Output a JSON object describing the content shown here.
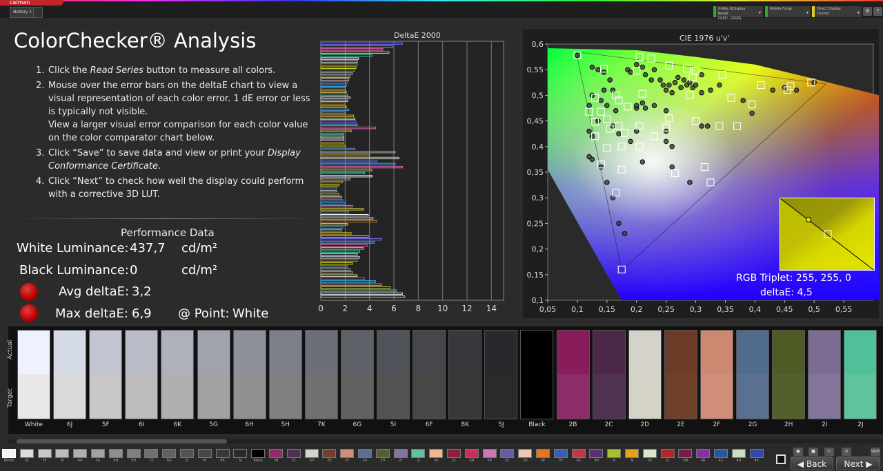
{
  "app": {
    "logo": "calman",
    "tab": "History 1"
  },
  "devices": [
    {
      "line1": "X-Rite i1Display Retail",
      "line2": "OLED - (RGB)",
      "color": "#2ea82e"
    },
    {
      "line1": "Mobile Forge",
      "line2": "",
      "color": "#2ea82e"
    },
    {
      "line1": "Direct Display Control",
      "line2": "",
      "color": "#e0d020"
    }
  ],
  "page_title": "ColorChecker® Analysis",
  "steps": {
    "s1_num": "1.",
    "s1_a": "Click the ",
    "s1_b": "Read Series",
    "s1_c": " button to measure all colors.",
    "s2_num": "2.",
    "s2_a": "Mouse over the error bars on the deltaE chart to view a visual representation of each color error. 1 dE error or less is typically not visible.",
    "s2_b": "View a larger visual error comparison for each color value on the color comparator chart below.",
    "s3_num": "3.",
    "s3_a": "Click “Save” to save data and view or print your ",
    "s3_b": "Display Conformance Certificate",
    "s3_c": ".",
    "s4_num": "4.",
    "s4_a": "Click “Next” to check how well the display could perform with a corrective 3D LUT."
  },
  "performance": {
    "title": "Performance Data",
    "white_label": "White Luminance:",
    "white_value": "437,7",
    "white_unit": "cd/m²",
    "black_label": "Black Luminance:",
    "black_value": "0",
    "black_unit": "cd/m²",
    "avg_label": "Avg deltaE:",
    "avg_value": "3,2",
    "max_label": "Max deltaE:",
    "max_value": "6,9",
    "point_label": "@ Point:",
    "point_value": "White"
  },
  "chart_data": [
    {
      "type": "bar",
      "title": "DeltaE 2000",
      "orientation": "horizontal",
      "xlim": [
        0,
        15
      ],
      "xticks": [
        0,
        2,
        4,
        6,
        8,
        10,
        12,
        14
      ],
      "grid": true,
      "values": [
        6.7,
        5.9,
        5.1,
        5.6,
        4.2,
        3.1,
        3.0,
        3.0,
        2.9,
        2.8,
        2.6,
        2.4,
        2.3,
        2.2,
        2.1,
        2.0,
        2.1,
        2.2,
        2.4,
        2.2,
        2.0,
        2.1,
        2.3,
        2.0,
        2.7,
        2.8,
        2.9,
        3.0,
        4.5,
        2.5,
        1.9,
        1.9,
        1.9,
        1.9,
        2.0,
        2.8,
        6.1,
        4.0,
        6.4,
        4.6,
        6.1,
        6.7,
        4.2,
        3.6,
        4.2,
        2.4,
        1.8,
        1.5,
        1.3,
        1.3,
        1.5,
        1.7,
        1.8,
        2.0,
        2.6,
        3.5,
        2.3,
        3.9,
        4.3,
        4.6,
        2.2,
        1.8,
        1.7,
        2.5,
        3.9,
        5.0,
        4.4,
        3.8,
        3.5,
        3.2,
        3.0,
        3.2,
        3.0,
        2.6,
        2.2,
        2.4,
        2.6,
        3.0,
        3.6,
        4.5,
        5.0,
        5.7,
        6.2,
        6.7,
        6.9
      ],
      "bar_colors": [
        "#7a6cff",
        "#37c8ff",
        "#ff6ecf",
        "#e6d24a",
        "#38d6a8",
        "#fff",
        "#d0d0d0",
        "#c09040",
        "#e6e600",
        "#4a9fe0",
        "#bbbbbb",
        "#d6b830",
        "#e6e0d0"
      ]
    },
    {
      "type": "scatter",
      "title": "CIE 1976 u'v'",
      "xlim": [
        0.05,
        0.6
      ],
      "ylim": [
        0.1,
        0.6
      ],
      "xticks": [
        "0,05",
        "0,1",
        "0,15",
        "0,2",
        "0,25",
        "0,3",
        "0,35",
        "0,4",
        "0,45",
        "0,5",
        "0,55"
      ],
      "yticks": [
        "0,1",
        "0,15",
        "0,2",
        "0,25",
        "0,3",
        "0,35",
        "0,4",
        "0,45",
        "0,5",
        "0,55",
        "0,6"
      ],
      "targets": [
        [
          0.1,
          0.578
        ],
        [
          0.145,
          0.552
        ],
        [
          0.205,
          0.575
        ],
        [
          0.2,
          0.548
        ],
        [
          0.225,
          0.572
        ],
        [
          0.255,
          0.558
        ],
        [
          0.285,
          0.552
        ],
        [
          0.3,
          0.548
        ],
        [
          0.345,
          0.54
        ],
        [
          0.295,
          0.535
        ],
        [
          0.41,
          0.52
        ],
        [
          0.46,
          0.518
        ],
        [
          0.495,
          0.525
        ],
        [
          0.455,
          0.51
        ],
        [
          0.36,
          0.495
        ],
        [
          0.395,
          0.482
        ],
        [
          0.29,
          0.5
        ],
        [
          0.21,
          0.503
        ],
        [
          0.165,
          0.5
        ],
        [
          0.13,
          0.495
        ],
        [
          0.17,
          0.49
        ],
        [
          0.12,
          0.468
        ],
        [
          0.14,
          0.468
        ],
        [
          0.185,
          0.478
        ],
        [
          0.13,
          0.448
        ],
        [
          0.155,
          0.435
        ],
        [
          0.15,
          0.453
        ],
        [
          0.17,
          0.44
        ],
        [
          0.205,
          0.44
        ],
        [
          0.255,
          0.455
        ],
        [
          0.25,
          0.437
        ],
        [
          0.3,
          0.45
        ],
        [
          0.34,
          0.44
        ],
        [
          0.37,
          0.44
        ],
        [
          0.18,
          0.426
        ],
        [
          0.13,
          0.42
        ],
        [
          0.15,
          0.397
        ],
        [
          0.175,
          0.4
        ],
        [
          0.205,
          0.4
        ],
        [
          0.23,
          0.42
        ],
        [
          0.14,
          0.365
        ],
        [
          0.175,
          0.355
        ],
        [
          0.265,
          0.348
        ],
        [
          0.315,
          0.36
        ],
        [
          0.325,
          0.33
        ],
        [
          0.165,
          0.31
        ],
        [
          0.175,
          0.16
        ]
      ],
      "measured": [
        [
          0.1,
          0.578
        ],
        [
          0.12,
          0.48
        ],
        [
          0.125,
          0.555
        ],
        [
          0.135,
          0.55
        ],
        [
          0.145,
          0.545
        ],
        [
          0.125,
          0.5
        ],
        [
          0.14,
          0.49
        ],
        [
          0.155,
          0.53
        ],
        [
          0.16,
          0.51
        ],
        [
          0.185,
          0.55
        ],
        [
          0.19,
          0.545
        ],
        [
          0.2,
          0.56
        ],
        [
          0.21,
          0.555
        ],
        [
          0.215,
          0.54
        ],
        [
          0.225,
          0.53
        ],
        [
          0.23,
          0.55
        ],
        [
          0.24,
          0.53
        ],
        [
          0.245,
          0.52
        ],
        [
          0.25,
          0.51
        ],
        [
          0.255,
          0.52
        ],
        [
          0.26,
          0.505
        ],
        [
          0.265,
          0.525
        ],
        [
          0.27,
          0.535
        ],
        [
          0.275,
          0.515
        ],
        [
          0.28,
          0.53
        ],
        [
          0.285,
          0.52
        ],
        [
          0.29,
          0.525
        ],
        [
          0.295,
          0.515
        ],
        [
          0.3,
          0.52
        ],
        [
          0.31,
          0.54
        ],
        [
          0.31,
          0.505
        ],
        [
          0.325,
          0.51
        ],
        [
          0.34,
          0.52
        ],
        [
          0.38,
          0.49
        ],
        [
          0.395,
          0.465
        ],
        [
          0.43,
          0.51
        ],
        [
          0.45,
          0.515
        ],
        [
          0.47,
          0.51
        ],
        [
          0.5,
          0.525
        ],
        [
          0.145,
          0.51
        ],
        [
          0.15,
          0.48
        ],
        [
          0.165,
          0.47
        ],
        [
          0.2,
          0.475
        ],
        [
          0.2,
          0.48
        ],
        [
          0.21,
          0.485
        ],
        [
          0.23,
          0.48
        ],
        [
          0.25,
          0.47
        ],
        [
          0.12,
          0.43
        ],
        [
          0.125,
          0.42
        ],
        [
          0.135,
          0.45
        ],
        [
          0.16,
          0.44
        ],
        [
          0.17,
          0.425
        ],
        [
          0.19,
          0.41
        ],
        [
          0.2,
          0.43
        ],
        [
          0.25,
          0.43
        ],
        [
          0.25,
          0.41
        ],
        [
          0.26,
          0.4
        ],
        [
          0.31,
          0.44
        ],
        [
          0.32,
          0.44
        ],
        [
          0.12,
          0.38
        ],
        [
          0.125,
          0.375
        ],
        [
          0.14,
          0.36
        ],
        [
          0.15,
          0.33
        ],
        [
          0.16,
          0.3
        ],
        [
          0.17,
          0.25
        ],
        [
          0.18,
          0.23
        ],
        [
          0.21,
          0.37
        ],
        [
          0.26,
          0.36
        ],
        [
          0.29,
          0.33
        ],
        [
          0.215,
          0.475
        ]
      ],
      "gamut": [
        [
          0.098,
          0.585
        ],
        [
          0.52,
          0.522
        ],
        [
          0.175,
          0.158
        ]
      ],
      "locus": [
        [
          0.61,
          0.5
        ],
        [
          0.49,
          0.535
        ],
        [
          0.4,
          0.56
        ],
        [
          0.3,
          0.575
        ],
        [
          0.2,
          0.588
        ],
        [
          0.05,
          0.592
        ],
        [
          0.05,
          0.355
        ],
        [
          0.175,
          0.1
        ],
        [
          0.61,
          0.1
        ]
      ]
    }
  ],
  "inset": {
    "rgb_label": "RGB Triplet: 255, 255, 0",
    "de_label": "deltaE: 4,5"
  },
  "compare_axis": {
    "actual": "Actual",
    "target": "Target"
  },
  "swatches": [
    {
      "label": "White",
      "actual": "#eef2ff",
      "target": "#e8e8e8"
    },
    {
      "label": "6J",
      "actual": "#d5dae8",
      "target": "#dadada"
    },
    {
      "label": "5F",
      "actual": "#c2c6d0",
      "target": "#c8c8c8"
    },
    {
      "label": "6I",
      "actual": "#b8bcc6",
      "target": "#bcbcbc"
    },
    {
      "label": "6K",
      "actual": "#aeb1ba",
      "target": "#b0b0b0"
    },
    {
      "label": "5G",
      "actual": "#a0a3ac",
      "target": "#a2a2a2"
    },
    {
      "label": "6H",
      "actual": "#8d9099",
      "target": "#909090"
    },
    {
      "label": "5H",
      "actual": "#7d8089",
      "target": "#808080"
    },
    {
      "label": "7K",
      "actual": "#6c6f77",
      "target": "#707070"
    },
    {
      "label": "6G",
      "actual": "#5e6168",
      "target": "#616161"
    },
    {
      "label": "5I",
      "actual": "#505359",
      "target": "#535353"
    },
    {
      "label": "6F",
      "actual": "#45474c",
      "target": "#474747"
    },
    {
      "label": "8K",
      "actual": "#36383c",
      "target": "#383838"
    },
    {
      "label": "5J",
      "actual": "#27292c",
      "target": "#2a2a2a"
    },
    {
      "label": "Black",
      "actual": "#000000",
      "target": "#000000"
    },
    {
      "label": "2B",
      "actual": "#8a1c5c",
      "target": "#8c2c68"
    },
    {
      "label": "2C",
      "actual": "#4c2848",
      "target": "#4e3250"
    },
    {
      "label": "2D",
      "actual": "#d4d2ca",
      "target": "#d5d2c8"
    },
    {
      "label": "2E",
      "actual": "#6c3c28",
      "target": "#70402c"
    },
    {
      "label": "2F",
      "actual": "#cc8870",
      "target": "#d08e78"
    },
    {
      "label": "2G",
      "actual": "#506c8c",
      "target": "#5a7090"
    },
    {
      "label": "2H",
      "actual": "#4c5c24",
      "target": "#52602c"
    },
    {
      "label": "2I",
      "actual": "#7c6c94",
      "target": "#82749a"
    },
    {
      "label": "2J",
      "actual": "#50c098",
      "target": "#5ec49e"
    }
  ],
  "mini_swatches": [
    {
      "label": "White",
      "color": "#f4f4f4"
    },
    {
      "label": "6J",
      "color": "#dcdcdc"
    },
    {
      "label": "5F",
      "color": "#c8c8c8"
    },
    {
      "label": "6I",
      "color": "#bcbcbc"
    },
    {
      "label": "6K",
      "color": "#b0b0b0"
    },
    {
      "label": "5G",
      "color": "#a2a2a2"
    },
    {
      "label": "6H",
      "color": "#909090"
    },
    {
      "label": "5H",
      "color": "#808080"
    },
    {
      "label": "7K",
      "color": "#707070"
    },
    {
      "label": "6G",
      "color": "#616161"
    },
    {
      "label": "5I",
      "color": "#535353"
    },
    {
      "label": "6F",
      "color": "#474747"
    },
    {
      "label": "8K",
      "color": "#383838"
    },
    {
      "label": "5J",
      "color": "#2a2a2a"
    },
    {
      "label": "Black",
      "color": "#000000"
    },
    {
      "label": "2B",
      "color": "#8c2c68"
    },
    {
      "label": "2C",
      "color": "#4e3250"
    },
    {
      "label": "2D",
      "color": "#d5d2c8"
    },
    {
      "label": "2E",
      "color": "#70402c"
    },
    {
      "label": "2F",
      "color": "#d08e78"
    },
    {
      "label": "2G",
      "color": "#5a7090"
    },
    {
      "label": "2H",
      "color": "#52602c"
    },
    {
      "label": "2I",
      "color": "#82749a"
    },
    {
      "label": "2J",
      "color": "#5ec49e"
    },
    {
      "label": "2K",
      "color": "#f0b890"
    },
    {
      "label": "2L",
      "color": "#8c2038"
    },
    {
      "label": "2M",
      "color": "#c83058"
    },
    {
      "label": "3B",
      "color": "#c878b4"
    },
    {
      "label": "3C",
      "color": "#6c58a8"
    },
    {
      "label": "3D",
      "color": "#f0c8b8"
    },
    {
      "label": "3E",
      "color": "#e07820"
    },
    {
      "label": "3F",
      "color": "#3c5cb0"
    },
    {
      "label": "3G",
      "color": "#c03848"
    },
    {
      "label": "3H",
      "color": "#5c3070"
    },
    {
      "label": "3I",
      "color": "#a8c030"
    },
    {
      "label": "3J",
      "color": "#e8a020"
    },
    {
      "label": "3K",
      "color": "#d8e8c8"
    },
    {
      "label": "3L",
      "color": "#b02828"
    },
    {
      "label": "3M",
      "color": "#781c48"
    },
    {
      "label": "4B",
      "color": "#8830a0"
    },
    {
      "label": "4C",
      "color": "#285898"
    },
    {
      "label": "4D",
      "color": "#c8e0c0"
    },
    {
      "label": "4E",
      "color": "#3048a8"
    }
  ],
  "nav": {
    "back": "Back",
    "next": "Next",
    "save": "SAVE"
  }
}
